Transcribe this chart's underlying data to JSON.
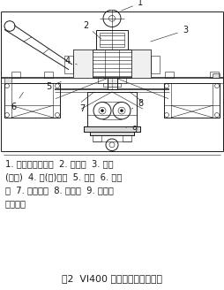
{
  "title": "图2  VI400 立式破碎机结构简图",
  "caption_lines": [
    "1. 进料带式输送机  2. 给料器  3. 叶轮",
    "(转子)  4. 圆(方)铁砦  5. 电机  6. 电机",
    "座  7. 三角带轮  8. 主轴笱  9. 出料带",
    "式输送机"
  ],
  "bg_color": "#ffffff",
  "line_color": "#1a1a1a",
  "font_size_caption": 7.2,
  "font_size_title": 7.8
}
